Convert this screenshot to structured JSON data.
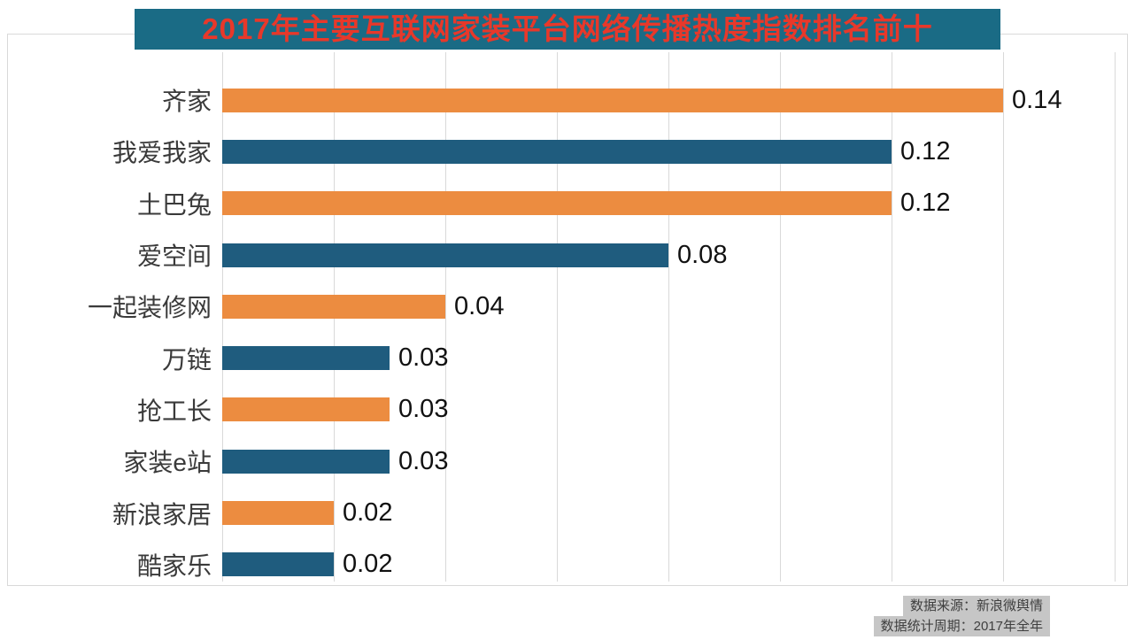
{
  "title": {
    "text": "2017年主要互联网家装平台网络传播热度指数排名前十",
    "bg_color": "#1a6b85",
    "text_color": "#e8382a"
  },
  "source_note": {
    "lines": [
      "数据来源：新浪微舆情",
      "数据统计周期：2017年全年"
    ],
    "bg_color": "#c6c6c6",
    "text_color": "#3f3f3f"
  },
  "chart_data": {
    "type": "bar",
    "orientation": "horizontal",
    "title": "2017年主要互联网家装平台网络传播热度指数排名前十",
    "categories": [
      "齐家",
      "我爱我家",
      "土巴兔",
      "爱空间",
      "一起装修网",
      "万链",
      "抢工长",
      "家装e站",
      "新浪家居",
      "酷家乐"
    ],
    "values": [
      0.14,
      0.12,
      0.12,
      0.08,
      0.04,
      0.03,
      0.03,
      0.03,
      0.02,
      0.02
    ],
    "value_labels": [
      "0.14",
      "0.12",
      "0.12",
      "0.08",
      "0.04",
      "0.03",
      "0.03",
      "0.03",
      "0.02",
      "0.02"
    ],
    "xlabel": "",
    "ylabel": "",
    "xlim": [
      0,
      0.16
    ],
    "grid_step": 0.02,
    "grid": true,
    "legend": "none",
    "bar_color_pattern": [
      "#EC8C40",
      "#1F5C7E"
    ],
    "grid_color": "#d9d9d9"
  }
}
